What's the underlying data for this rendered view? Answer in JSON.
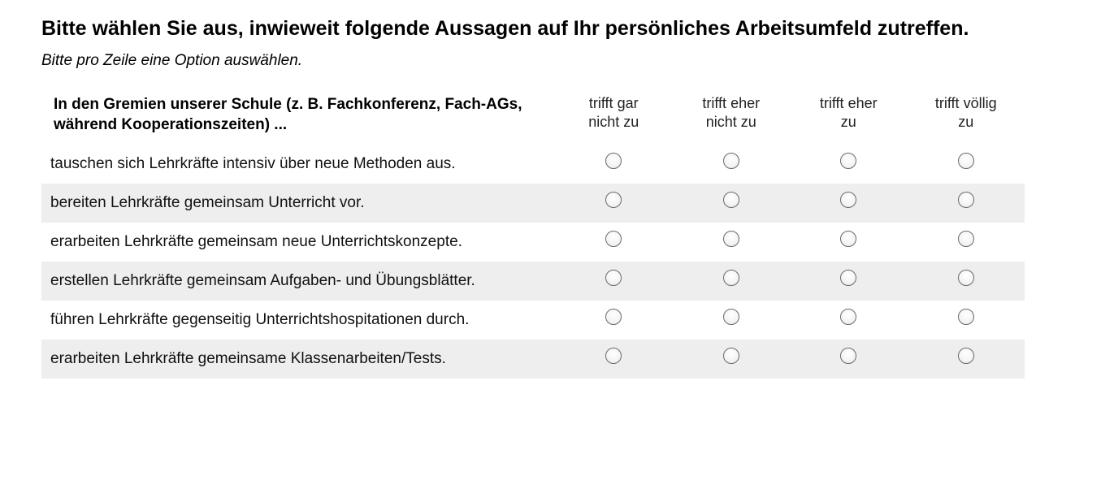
{
  "question": {
    "title": "Bitte wählen Sie aus, inwieweit folgende Aussagen auf Ihr persönliches Arbeitsumfeld zutreffen.",
    "hint": "Bitte pro Zeile eine Option auswählen."
  },
  "matrix": {
    "header": "In den Gremien unserer Schule (z. B. Fachkonferenz, Fach-AGs, während Kooperationszeiten) ...",
    "options": [
      {
        "line1": "trifft gar",
        "line2": "nicht zu"
      },
      {
        "line1": "trifft eher",
        "line2": "nicht zu"
      },
      {
        "line1": "trifft eher",
        "line2": "zu"
      },
      {
        "line1": "trifft völlig",
        "line2": "zu"
      }
    ],
    "rows": [
      "tauschen sich Lehrkräfte intensiv über neue Methoden aus.",
      "bereiten Lehrkräfte gemeinsam Unterricht vor.",
      "erarbeiten Lehrkräfte gemeinsam neue Unterrichtskonzepte.",
      "erstellen Lehrkräfte gemeinsam Aufgaben- und Übungsblätter.",
      "führen Lehrkräfte gegenseitig Unterrichtshospitationen durch.",
      "erarbeiten Lehrkräfte gemeinsame Klassenarbeiten/Tests."
    ]
  },
  "colors": {
    "row_alt_background": "#eeeeee",
    "radio_border": "#6a6a6a"
  }
}
